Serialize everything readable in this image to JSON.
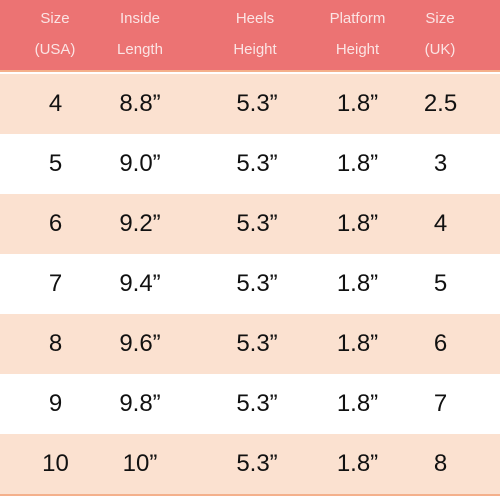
{
  "table": {
    "headers": [
      {
        "line1": "Size",
        "line2": "(USA)"
      },
      {
        "line1": "Inside",
        "line2": "Length"
      },
      {
        "line1": "Heels",
        "line2": "Height"
      },
      {
        "line1": "Platform",
        "line2": "Height"
      },
      {
        "line1": "Size",
        "line2": "(UK)"
      }
    ],
    "rows": [
      [
        "4",
        "8.8”",
        "5.3”",
        "1.8”",
        "2.5"
      ],
      [
        "5",
        "9.0”",
        "5.3”",
        "1.8”",
        "3"
      ],
      [
        "6",
        "9.2”",
        "5.3”",
        "1.8”",
        "4"
      ],
      [
        "7",
        "9.4”",
        "5.3”",
        "1.8”",
        "5"
      ],
      [
        "8",
        "9.6”",
        "5.3”",
        "1.8”",
        "6"
      ],
      [
        "9",
        "9.8”",
        "5.3”",
        "1.8”",
        "7"
      ],
      [
        "10",
        "10”",
        "5.3”",
        "1.8”",
        "8"
      ]
    ],
    "colors": {
      "header_bg": "#ec7373",
      "header_text": "#fbe4e4",
      "shaded_row": "#fbe1d0",
      "plain_row": "#ffffff",
      "rule": "#f4b08b"
    }
  }
}
